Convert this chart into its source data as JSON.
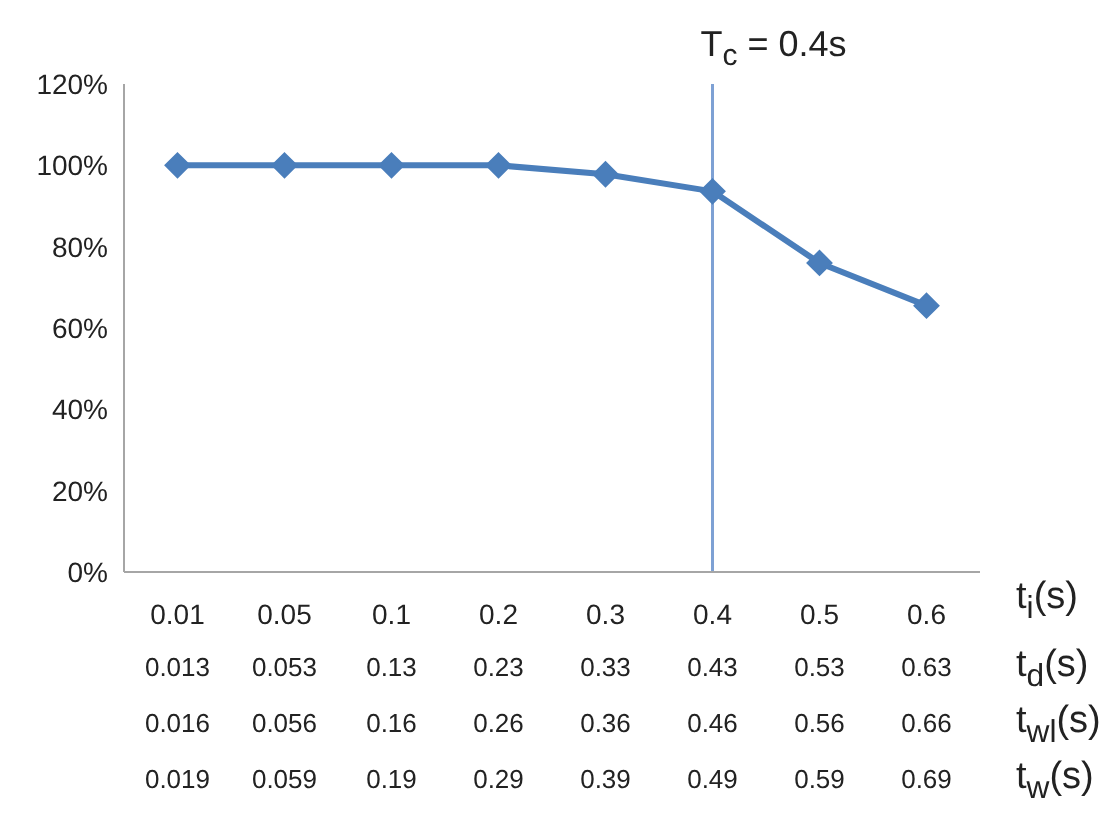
{
  "chart_data": {
    "type": "line",
    "xlabel": "t$_{i}$(s)",
    "categories": [
      "0.01",
      "0.05",
      "0.1",
      "0.2",
      "0.3",
      "0.4",
      "0.5",
      "0.6"
    ],
    "series": [
      {
        "color": "#4a7ebb",
        "values": [
          100,
          100,
          100,
          100,
          97.8,
          93.6,
          76,
          65.5
        ]
      }
    ],
    "ylim": [
      0,
      120
    ],
    "yticks": [
      {
        "value": 0,
        "label": "0%"
      },
      {
        "value": 20,
        "label": "20%"
      },
      {
        "value": 40,
        "label": "40%"
      },
      {
        "value": 60,
        "label": "60%"
      },
      {
        "value": 80,
        "label": "80%"
      },
      {
        "value": 100,
        "label": "100%"
      },
      {
        "value": 120,
        "label": "120%"
      }
    ],
    "marker": "diamond",
    "grid": false,
    "legend": false,
    "ref_lines": [
      {
        "axis": "x",
        "value": "0.4",
        "label": "T$_{c}$ = 0.4s",
        "color": "#7ea1d4"
      }
    ],
    "annotations": [
      "t$_{d}$(s)",
      "0.013",
      "0.053",
      "0.13",
      "0.23",
      "0.33",
      "0.43",
      "0.53",
      "0.63",
      "t$_{wl}$(s)",
      "0.016",
      "0.056",
      "0.16",
      "0.26",
      "0.36",
      "0.46",
      "0.56",
      "0.66",
      "t$_{w}$(s)",
      "0.019",
      "0.059",
      "0.19",
      "0.29",
      "0.39",
      "0.49",
      "0.59",
      "0.69"
    ]
  }
}
